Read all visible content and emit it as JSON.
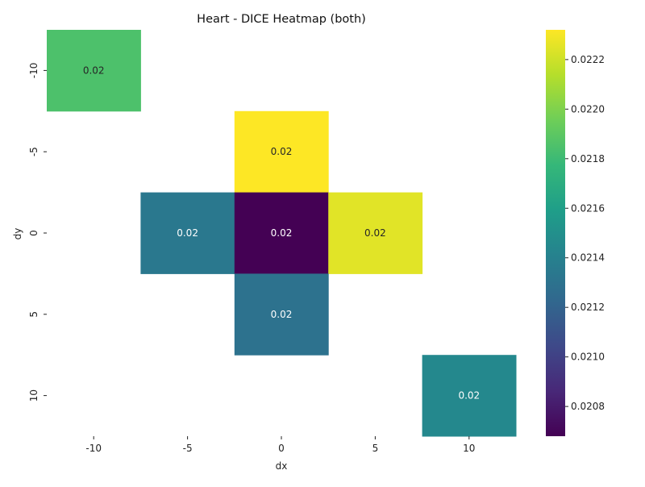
{
  "chart_data": {
    "type": "heatmap",
    "title": "Heart - DICE Heatmap (both)",
    "xlabel": "dx",
    "ylabel": "dy",
    "x_categories": [
      "-10",
      "-5",
      "0",
      "5",
      "10"
    ],
    "y_categories": [
      "-10",
      "-5",
      "0",
      "5",
      "10"
    ],
    "cells": [
      {
        "x": "-10",
        "y": "-10",
        "value": 0.02185,
        "label": "0.02"
      },
      {
        "x": "0",
        "y": "-5",
        "value": 0.02232,
        "label": "0.02"
      },
      {
        "x": "-5",
        "y": "0",
        "value": 0.02134,
        "label": "0.02"
      },
      {
        "x": "0",
        "y": "0",
        "value": 0.02068,
        "label": "0.02"
      },
      {
        "x": "5",
        "y": "0",
        "value": 0.02225,
        "label": "0.02"
      },
      {
        "x": "0",
        "y": "5",
        "value": 0.0213,
        "label": "0.02"
      },
      {
        "x": "10",
        "y": "10",
        "value": 0.02145,
        "label": "0.02"
      }
    ],
    "colorbar": {
      "colormap": "viridis",
      "range": [
        0.02068,
        0.02232
      ],
      "ticks": [
        "0.0208",
        "0.0210",
        "0.0212",
        "0.0214",
        "0.0216",
        "0.0218",
        "0.0220",
        "0.0222"
      ]
    },
    "colors": {
      "viridis_stops": [
        "#440154",
        "#482878",
        "#3e4989",
        "#31688e",
        "#26828e",
        "#1f9e89",
        "#35b779",
        "#6ece58",
        "#b5de2b",
        "#fde725"
      ],
      "text_dark": "#262626",
      "text_light": "#ffffff"
    }
  }
}
